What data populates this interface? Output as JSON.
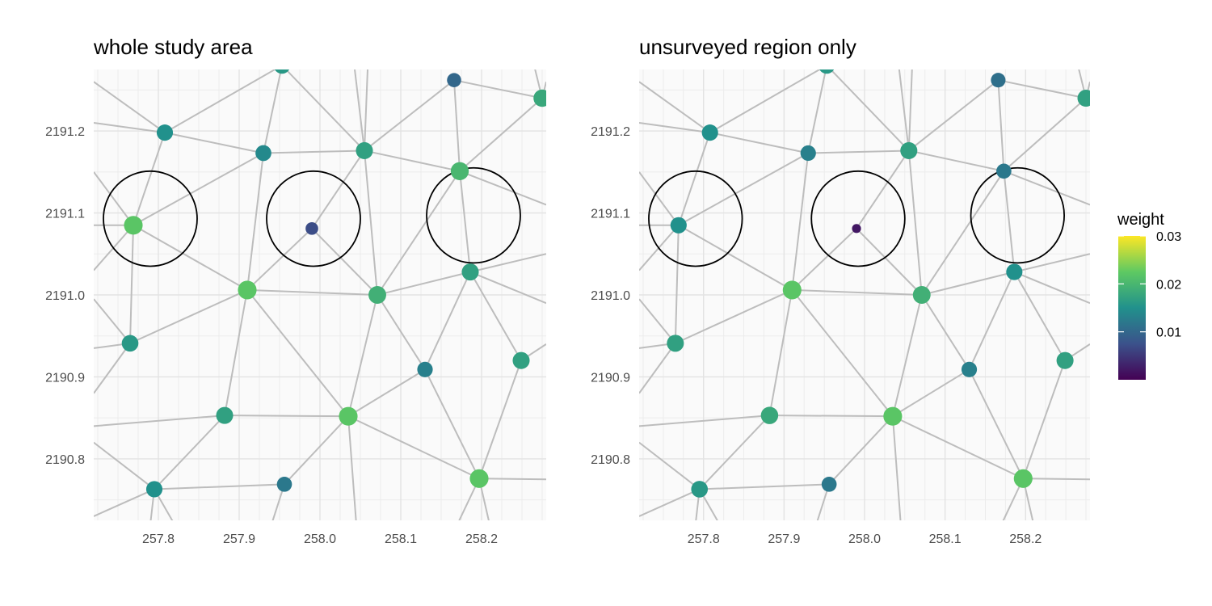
{
  "chart_data": {
    "type": "scatter",
    "subtype": "spatial network (points with weight color scale, edges, circular regions)",
    "x_ticks": [
      257.8,
      257.9,
      258.0,
      258.1,
      258.2
    ],
    "y_ticks": [
      2190.8,
      2190.9,
      2191.0,
      2191.1,
      2191.2
    ],
    "xlim": [
      257.72,
      258.28
    ],
    "ylim": [
      2190.725,
      2191.275
    ],
    "grid": true,
    "legend": {
      "title": "weight",
      "placement": "right",
      "ticks": [
        0.01,
        0.02,
        0.03
      ],
      "range": [
        0.0,
        0.03
      ],
      "colors": [
        "#440154",
        "#3b528b",
        "#21918c",
        "#5ec962",
        "#fde725"
      ]
    },
    "edge_color": "#bdbdbd",
    "circle_color": "#000000",
    "panels": [
      {
        "title": "whole study area",
        "points": [
          {
            "x": 257.953,
            "y": 2191.28,
            "w": 0.016
          },
          {
            "x": 258.166,
            "y": 2191.262,
            "w": 0.01
          },
          {
            "x": 258.275,
            "y": 2191.24,
            "w": 0.018
          },
          {
            "x": 257.808,
            "y": 2191.198,
            "w": 0.015
          },
          {
            "x": 257.93,
            "y": 2191.173,
            "w": 0.014
          },
          {
            "x": 258.055,
            "y": 2191.176,
            "w": 0.017
          },
          {
            "x": 258.173,
            "y": 2191.151,
            "w": 0.02
          },
          {
            "x": 257.769,
            "y": 2191.085,
            "w": 0.022
          },
          {
            "x": 257.99,
            "y": 2191.081,
            "w": 0.007
          },
          {
            "x": 258.186,
            "y": 2191.028,
            "w": 0.017
          },
          {
            "x": 257.91,
            "y": 2191.006,
            "w": 0.022
          },
          {
            "x": 258.071,
            "y": 2191.0,
            "w": 0.019
          },
          {
            "x": 257.765,
            "y": 2190.941,
            "w": 0.016
          },
          {
            "x": 258.13,
            "y": 2190.909,
            "w": 0.013
          },
          {
            "x": 258.249,
            "y": 2190.92,
            "w": 0.017
          },
          {
            "x": 257.882,
            "y": 2190.853,
            "w": 0.017
          },
          {
            "x": 258.035,
            "y": 2190.852,
            "w": 0.022
          },
          {
            "x": 257.795,
            "y": 2190.763,
            "w": 0.015
          },
          {
            "x": 257.956,
            "y": 2190.769,
            "w": 0.012
          },
          {
            "x": 258.197,
            "y": 2190.776,
            "w": 0.022
          }
        ]
      },
      {
        "title": "unsurveyed region only",
        "points": [
          {
            "x": 257.953,
            "y": 2191.28,
            "w": 0.016
          },
          {
            "x": 258.166,
            "y": 2191.262,
            "w": 0.011
          },
          {
            "x": 258.275,
            "y": 2191.24,
            "w": 0.017
          },
          {
            "x": 257.808,
            "y": 2191.198,
            "w": 0.015
          },
          {
            "x": 257.93,
            "y": 2191.173,
            "w": 0.013
          },
          {
            "x": 258.055,
            "y": 2191.176,
            "w": 0.017
          },
          {
            "x": 258.173,
            "y": 2191.151,
            "w": 0.012
          },
          {
            "x": 257.769,
            "y": 2191.085,
            "w": 0.015
          },
          {
            "x": 257.99,
            "y": 2191.081,
            "w": 0.002
          },
          {
            "x": 258.186,
            "y": 2191.028,
            "w": 0.015
          },
          {
            "x": 257.91,
            "y": 2191.006,
            "w": 0.022
          },
          {
            "x": 258.071,
            "y": 2191.0,
            "w": 0.019
          },
          {
            "x": 257.765,
            "y": 2190.941,
            "w": 0.017
          },
          {
            "x": 258.13,
            "y": 2190.909,
            "w": 0.013
          },
          {
            "x": 258.249,
            "y": 2190.92,
            "w": 0.017
          },
          {
            "x": 257.882,
            "y": 2190.853,
            "w": 0.018
          },
          {
            "x": 258.035,
            "y": 2190.852,
            "w": 0.022
          },
          {
            "x": 257.795,
            "y": 2190.763,
            "w": 0.016
          },
          {
            "x": 257.956,
            "y": 2190.769,
            "w": 0.012
          },
          {
            "x": 258.197,
            "y": 2190.776,
            "w": 0.022
          }
        ]
      }
    ],
    "edges": [
      [
        3,
        0
      ],
      [
        4,
        0
      ],
      [
        0,
        5
      ],
      [
        5,
        1
      ],
      [
        1,
        6
      ],
      [
        1,
        2
      ],
      [
        6,
        2
      ],
      [
        3,
        4
      ],
      [
        4,
        5
      ],
      [
        5,
        6
      ],
      [
        3,
        7
      ],
      [
        4,
        7
      ],
      [
        4,
        10
      ],
      [
        5,
        8
      ],
      [
        8,
        10
      ],
      [
        8,
        11
      ],
      [
        5,
        11
      ],
      [
        6,
        11
      ],
      [
        6,
        9
      ],
      [
        10,
        11
      ],
      [
        11,
        9
      ],
      [
        7,
        10
      ],
      [
        7,
        12
      ],
      [
        10,
        12
      ],
      [
        10,
        15
      ],
      [
        10,
        16
      ],
      [
        11,
        16
      ],
      [
        11,
        13
      ],
      [
        9,
        13
      ],
      [
        9,
        14
      ],
      [
        13,
        16
      ],
      [
        13,
        19
      ],
      [
        14,
        19
      ],
      [
        15,
        16
      ],
      [
        15,
        17
      ],
      [
        17,
        18
      ],
      [
        18,
        16
      ],
      [
        16,
        19
      ]
    ],
    "boundary_edges": [
      [
        [
          257.72,
          2191.26
        ],
        3
      ],
      [
        [
          257.72,
          2191.15
        ],
        7
      ],
      [
        [
          257.72,
          2191.085
        ],
        7
      ],
      [
        [
          257.72,
          2191.03
        ],
        7
      ],
      [
        0,
        [
          257.95,
          2191.3
        ]
      ],
      [
        5,
        [
          258.06,
          2191.3
        ]
      ],
      [
        5,
        [
          258.04,
          2191.3
        ]
      ],
      [
        2,
        [
          258.26,
          2191.3
        ]
      ],
      [
        3,
        [
          257.72,
          2191.21
        ]
      ],
      [
        6,
        [
          258.28,
          2191.11
        ]
      ],
      [
        2,
        [
          258.28,
          2191.26
        ]
      ],
      [
        9,
        [
          258.28,
          2191.05
        ]
      ],
      [
        9,
        [
          258.28,
          2190.99
        ]
      ],
      [
        14,
        [
          258.28,
          2190.94
        ]
      ],
      [
        [
          257.72,
          2190.995
        ],
        12
      ],
      [
        [
          257.72,
          2190.935
        ],
        12
      ],
      [
        [
          257.72,
          2190.88
        ],
        12
      ],
      [
        [
          257.72,
          2190.84
        ],
        15
      ],
      [
        [
          257.72,
          2190.82
        ],
        17
      ],
      [
        [
          257.72,
          2190.73
        ],
        17
      ],
      [
        17,
        [
          257.79,
          2190.72
        ]
      ],
      [
        17,
        [
          257.82,
          2190.72
        ]
      ],
      [
        18,
        [
          257.94,
          2190.72
        ]
      ],
      [
        16,
        [
          258.045,
          2190.72
        ]
      ],
      [
        19,
        [
          258.17,
          2190.72
        ]
      ],
      [
        19,
        [
          258.21,
          2190.72
        ]
      ],
      [
        19,
        [
          258.28,
          2190.775
        ]
      ]
    ],
    "circles": [
      {
        "x": 257.79,
        "y": 2191.093,
        "r": 0.058
      },
      {
        "x": 257.992,
        "y": 2191.093,
        "r": 0.058
      },
      {
        "x": 258.19,
        "y": 2191.097,
        "r": 0.058
      }
    ]
  }
}
